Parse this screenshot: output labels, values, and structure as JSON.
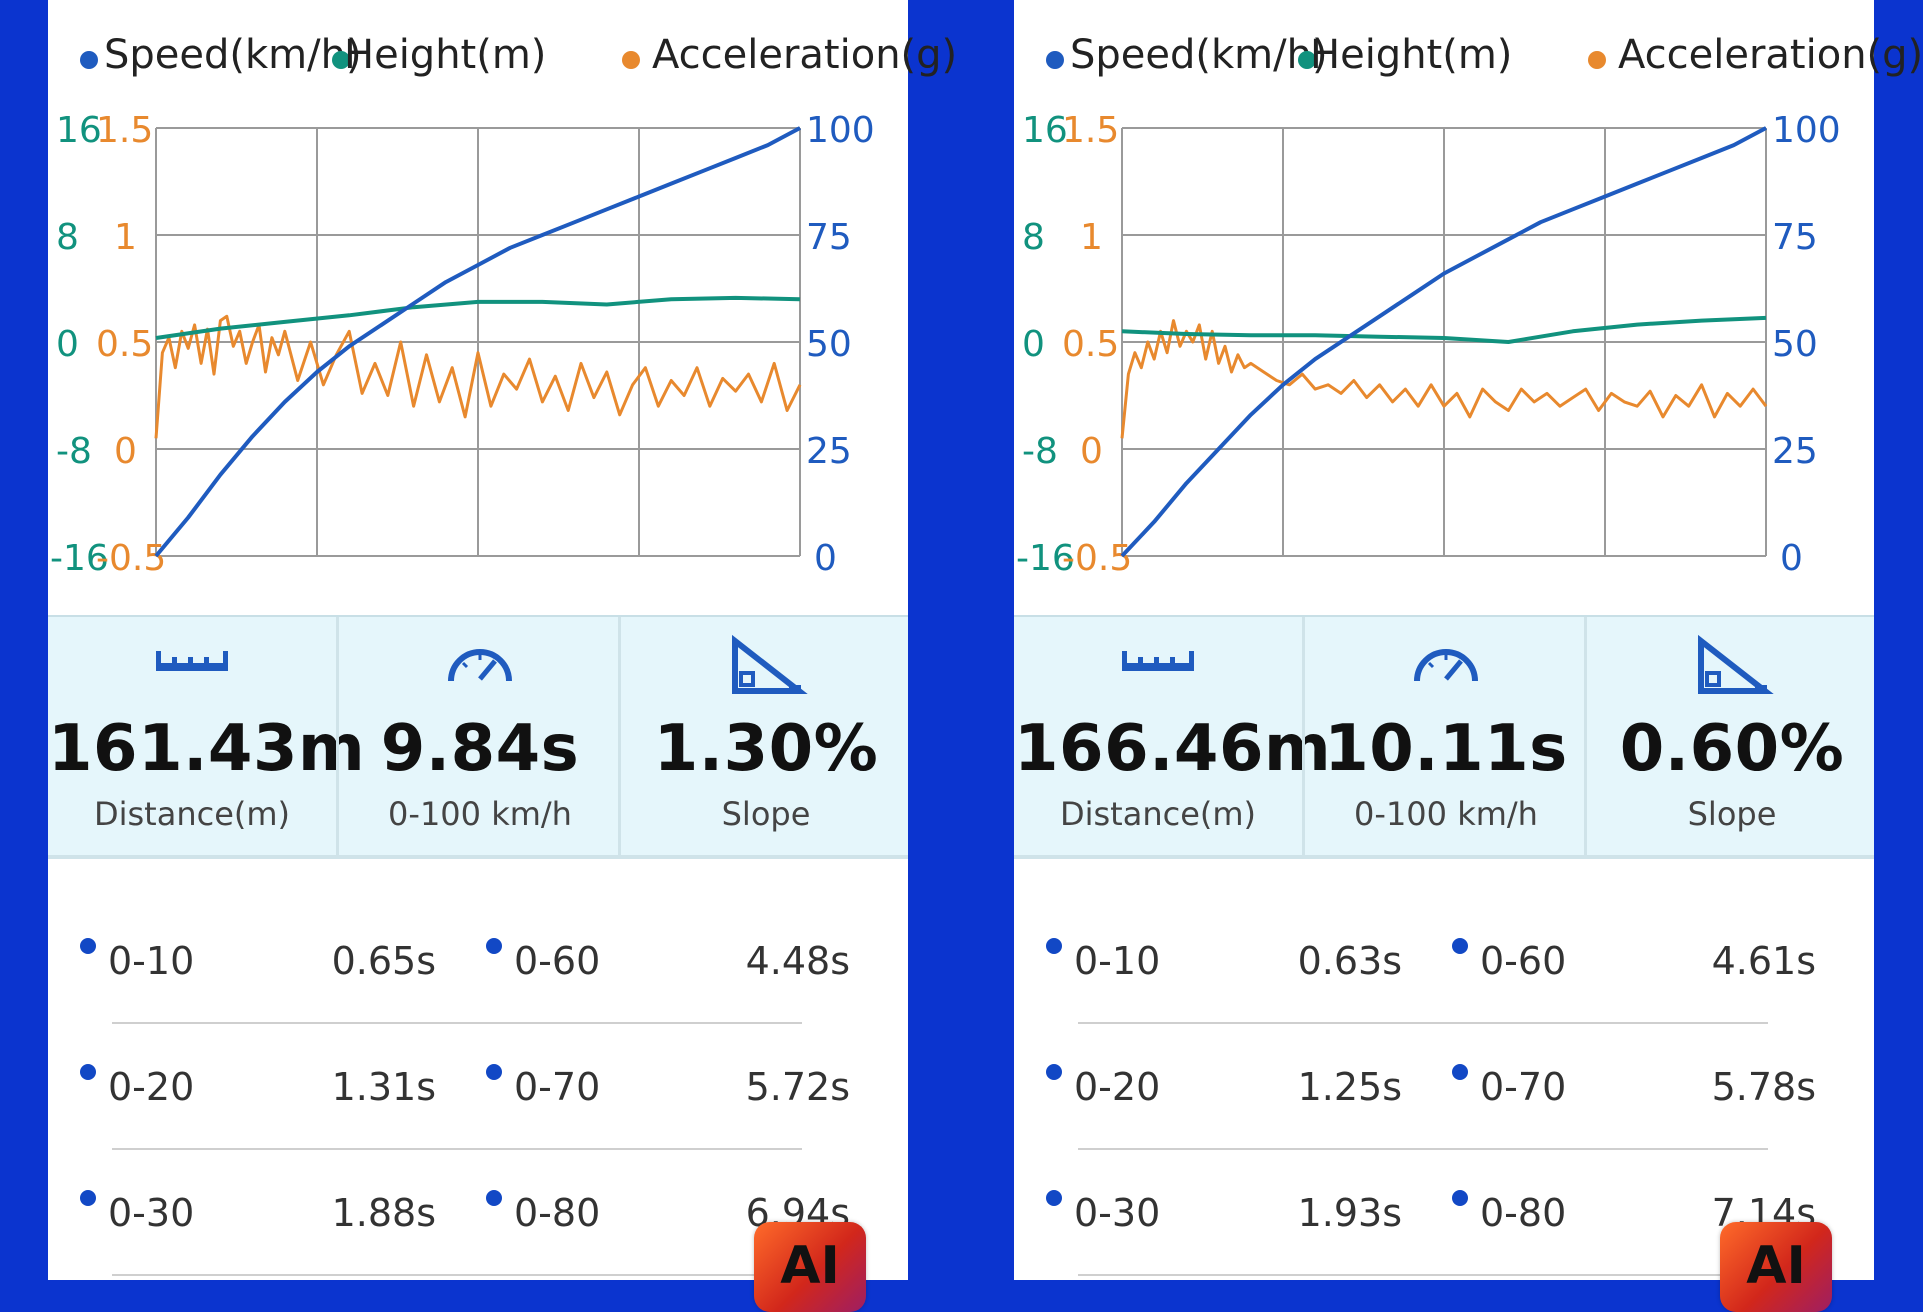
{
  "colors": {
    "speed": "#1f5bbf",
    "height": "#11927e",
    "acceleration": "#e8892e",
    "grid": "#9a9a9a",
    "background": "#0b34cf"
  },
  "legend": {
    "speed": "Speed(km/h)",
    "height": "Height(m)",
    "acceleration": "Acceleration(g)"
  },
  "panels": [
    {
      "chart_data": {
        "type": "line",
        "axes": {
          "height_ticks": [
            "16",
            "8",
            "0",
            "-8",
            "-16"
          ],
          "acceleration_ticks": [
            "1.5",
            "1",
            "0.5",
            "0",
            "-0.5"
          ],
          "speed_ticks": [
            "100",
            "75",
            "50",
            "25",
            "0"
          ]
        },
        "ylim_height": [
          -16,
          16
        ],
        "ylim_acceleration": [
          -0.5,
          1.5
        ],
        "ylim_speed": [
          0,
          100
        ],
        "grid": true,
        "series": [
          {
            "name": "Speed(km/h)",
            "x": [
              0,
              0.05,
              0.1,
              0.15,
              0.2,
              0.25,
              0.3,
              0.35,
              0.4,
              0.45,
              0.5,
              0.55,
              0.6,
              0.65,
              0.7,
              0.75,
              0.8,
              0.85,
              0.9,
              0.95,
              1
            ],
            "values": [
              0,
              9,
              19,
              28,
              36,
              43,
              49,
              54,
              59,
              64,
              68,
              72,
              75,
              78,
              81,
              84,
              87,
              90,
              93,
              96,
              100
            ]
          },
          {
            "name": "Height(m)",
            "x": [
              0,
              0.1,
              0.2,
              0.3,
              0.4,
              0.5,
              0.6,
              0.7,
              0.8,
              0.9,
              1
            ],
            "values": [
              0.3,
              1,
              1.5,
              2,
              2.6,
              3,
              3,
              2.8,
              3.2,
              3.3,
              3.2
            ]
          },
          {
            "name": "Acceleration(g)",
            "x": [
              0,
              0.01,
              0.02,
              0.03,
              0.04,
              0.05,
              0.06,
              0.07,
              0.08,
              0.09,
              0.1,
              0.11,
              0.12,
              0.13,
              0.14,
              0.15,
              0.16,
              0.17,
              0.18,
              0.19,
              0.2,
              0.22,
              0.24,
              0.26,
              0.28,
              0.3,
              0.32,
              0.34,
              0.36,
              0.38,
              0.4,
              0.42,
              0.44,
              0.46,
              0.48,
              0.5,
              0.52,
              0.54,
              0.56,
              0.58,
              0.6,
              0.62,
              0.64,
              0.66,
              0.68,
              0.7,
              0.72,
              0.74,
              0.76,
              0.78,
              0.8,
              0.82,
              0.84,
              0.86,
              0.88,
              0.9,
              0.92,
              0.94,
              0.96,
              0.98,
              1
            ],
            "values": [
              0.05,
              0.45,
              0.52,
              0.38,
              0.55,
              0.47,
              0.58,
              0.4,
              0.56,
              0.35,
              0.6,
              0.62,
              0.48,
              0.55,
              0.4,
              0.5,
              0.58,
              0.36,
              0.52,
              0.44,
              0.55,
              0.32,
              0.5,
              0.3,
              0.44,
              0.55,
              0.26,
              0.4,
              0.25,
              0.5,
              0.2,
              0.44,
              0.22,
              0.38,
              0.15,
              0.45,
              0.2,
              0.35,
              0.28,
              0.42,
              0.22,
              0.34,
              0.18,
              0.4,
              0.24,
              0.36,
              0.16,
              0.3,
              0.38,
              0.2,
              0.32,
              0.25,
              0.38,
              0.2,
              0.33,
              0.27,
              0.35,
              0.22,
              0.4,
              0.18,
              0.3
            ]
          }
        ]
      },
      "stats": [
        {
          "value": "161.43m",
          "caption": "Distance(m)"
        },
        {
          "value": "9.84s",
          "caption": "0-100 km/h"
        },
        {
          "value": "1.30%",
          "caption": "Slope"
        }
      ],
      "times": [
        {
          "l_label": "0-10",
          "l_val": "0.65s",
          "r_label": "0-60",
          "r_val": "4.48s"
        },
        {
          "l_label": "0-20",
          "l_val": "1.31s",
          "r_label": "0-70",
          "r_val": "5.72s"
        },
        {
          "l_label": "0-30",
          "l_val": "1.88s",
          "r_label": "0-80",
          "r_val": "6.94s"
        }
      ]
    },
    {
      "chart_data": {
        "type": "line",
        "axes": {
          "height_ticks": [
            "16",
            "8",
            "0",
            "-8",
            "-16"
          ],
          "acceleration_ticks": [
            "1.5",
            "1",
            "0.5",
            "0",
            "-0.5"
          ],
          "speed_ticks": [
            "100",
            "75",
            "50",
            "25",
            "0"
          ]
        },
        "ylim_height": [
          -16,
          16
        ],
        "ylim_acceleration": [
          -0.5,
          1.5
        ],
        "ylim_speed": [
          0,
          100
        ],
        "grid": true,
        "series": [
          {
            "name": "Speed(km/h)",
            "x": [
              0,
              0.05,
              0.1,
              0.15,
              0.2,
              0.25,
              0.3,
              0.35,
              0.4,
              0.45,
              0.5,
              0.55,
              0.6,
              0.65,
              0.7,
              0.75,
              0.8,
              0.85,
              0.9,
              0.95,
              1
            ],
            "values": [
              0,
              8,
              17,
              25,
              33,
              40,
              46,
              51,
              56,
              61,
              66,
              70,
              74,
              78,
              81,
              84,
              87,
              90,
              93,
              96,
              100
            ]
          },
          {
            "name": "Height(m)",
            "x": [
              0,
              0.1,
              0.2,
              0.3,
              0.4,
              0.5,
              0.6,
              0.7,
              0.8,
              0.9,
              1
            ],
            "values": [
              0.8,
              0.6,
              0.5,
              0.5,
              0.4,
              0.3,
              0,
              0.8,
              1.3,
              1.6,
              1.8
            ]
          },
          {
            "name": "Acceleration(g)",
            "x": [
              0,
              0.01,
              0.02,
              0.03,
              0.04,
              0.05,
              0.06,
              0.07,
              0.08,
              0.09,
              0.1,
              0.11,
              0.12,
              0.13,
              0.14,
              0.15,
              0.16,
              0.17,
              0.18,
              0.19,
              0.2,
              0.22,
              0.24,
              0.26,
              0.28,
              0.3,
              0.32,
              0.34,
              0.36,
              0.38,
              0.4,
              0.42,
              0.44,
              0.46,
              0.48,
              0.5,
              0.52,
              0.54,
              0.56,
              0.58,
              0.6,
              0.62,
              0.64,
              0.66,
              0.68,
              0.7,
              0.72,
              0.74,
              0.76,
              0.78,
              0.8,
              0.82,
              0.84,
              0.86,
              0.88,
              0.9,
              0.92,
              0.94,
              0.96,
              0.98,
              1
            ],
            "values": [
              0.05,
              0.35,
              0.45,
              0.38,
              0.5,
              0.42,
              0.55,
              0.45,
              0.6,
              0.48,
              0.55,
              0.5,
              0.58,
              0.42,
              0.55,
              0.4,
              0.48,
              0.36,
              0.44,
              0.38,
              0.4,
              0.36,
              0.32,
              0.3,
              0.35,
              0.28,
              0.3,
              0.26,
              0.32,
              0.24,
              0.3,
              0.22,
              0.28,
              0.2,
              0.3,
              0.2,
              0.26,
              0.15,
              0.28,
              0.22,
              0.18,
              0.28,
              0.22,
              0.26,
              0.2,
              0.24,
              0.28,
              0.18,
              0.26,
              0.22,
              0.2,
              0.27,
              0.15,
              0.25,
              0.2,
              0.3,
              0.15,
              0.26,
              0.2,
              0.28,
              0.2
            ]
          }
        ]
      },
      "stats": [
        {
          "value": "166.46m",
          "caption": "Distance(m)"
        },
        {
          "value": "10.11s",
          "caption": "0-100 km/h"
        },
        {
          "value": "0.60%",
          "caption": "Slope"
        }
      ],
      "times": [
        {
          "l_label": "0-10",
          "l_val": "0.63s",
          "r_label": "0-60",
          "r_val": "4.61s"
        },
        {
          "l_label": "0-20",
          "l_val": "1.25s",
          "r_label": "0-70",
          "r_val": "5.78s"
        },
        {
          "l_label": "0-30",
          "l_val": "1.93s",
          "r_label": "0-80",
          "r_val": "7.14s"
        }
      ]
    }
  ],
  "badge": {
    "text": "AI"
  }
}
